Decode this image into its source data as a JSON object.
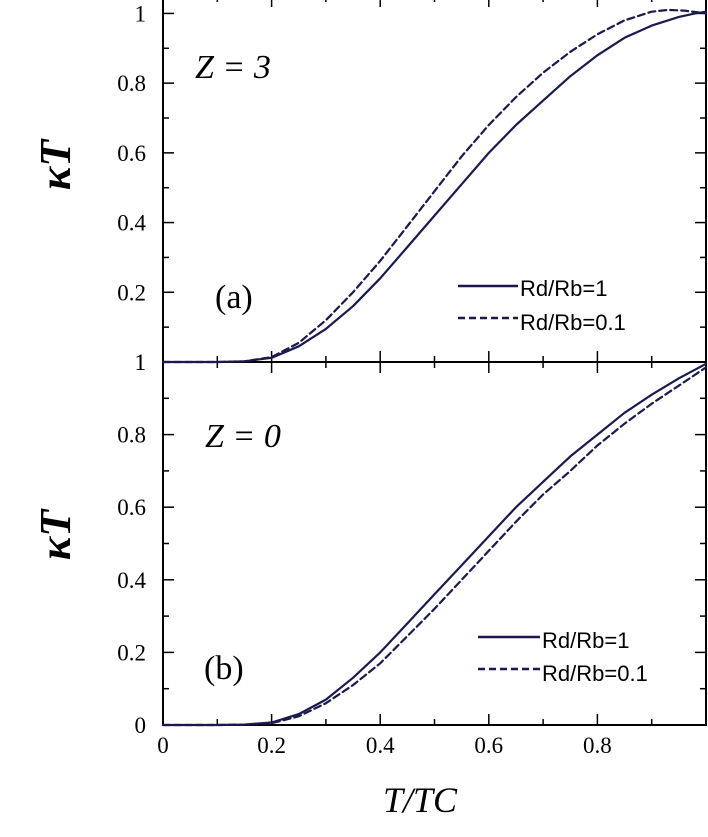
{
  "chart_data": [
    {
      "type": "line",
      "panel_label": "(a)",
      "annotation": "Z = 3",
      "ylabel": "κT",
      "xlabel": "",
      "xlim": [
        0,
        1
      ],
      "ylim": [
        0,
        1.05
      ],
      "yticks": [
        "1",
        "0.8",
        "0.6",
        "0.4",
        "0.2"
      ],
      "grid": false,
      "legend_position": "bottom-right",
      "series": [
        {
          "name": "Rd/Rb=1",
          "style": "solid",
          "x": [
            0.0,
            0.1,
            0.15,
            0.2,
            0.25,
            0.3,
            0.35,
            0.4,
            0.45,
            0.5,
            0.55,
            0.6,
            0.65,
            0.7,
            0.75,
            0.8,
            0.85,
            0.9,
            0.95,
            0.98,
            1.0
          ],
          "y": [
            0.0,
            0.0,
            0.002,
            0.012,
            0.045,
            0.095,
            0.16,
            0.24,
            0.33,
            0.42,
            0.51,
            0.6,
            0.68,
            0.75,
            0.82,
            0.88,
            0.93,
            0.965,
            0.99,
            1.0,
            1.005
          ]
        },
        {
          "name": "Rd/Rb=0.1",
          "style": "dashed",
          "x": [
            0.0,
            0.1,
            0.15,
            0.2,
            0.25,
            0.3,
            0.35,
            0.4,
            0.45,
            0.5,
            0.55,
            0.6,
            0.65,
            0.7,
            0.75,
            0.8,
            0.85,
            0.9,
            0.93,
            0.96,
            1.0
          ],
          "y": [
            0.0,
            0.0,
            0.002,
            0.014,
            0.055,
            0.12,
            0.2,
            0.29,
            0.39,
            0.49,
            0.59,
            0.68,
            0.76,
            0.83,
            0.89,
            0.94,
            0.98,
            1.005,
            1.01,
            1.008,
            1.0
          ]
        }
      ]
    },
    {
      "type": "line",
      "panel_label": "(b)",
      "annotation": "Z = 0",
      "ylabel": "κT",
      "xlabel": "T/TC",
      "xlim": [
        0,
        1
      ],
      "ylim": [
        0,
        1
      ],
      "yticks": [
        "1",
        "0.8",
        "0.6",
        "0.4",
        "0.2",
        "0"
      ],
      "xticks": [
        "0",
        "0.2",
        "0.4",
        "0.6",
        "0.8"
      ],
      "grid": false,
      "legend_position": "bottom-right",
      "series": [
        {
          "name": "Rd/Rb=1",
          "style": "solid",
          "x": [
            0.0,
            0.1,
            0.15,
            0.2,
            0.25,
            0.3,
            0.35,
            0.4,
            0.45,
            0.5,
            0.55,
            0.6,
            0.65,
            0.7,
            0.75,
            0.8,
            0.85,
            0.9,
            0.95,
            1.0
          ],
          "y": [
            0.0,
            0.0,
            0.001,
            0.007,
            0.03,
            0.07,
            0.13,
            0.2,
            0.28,
            0.36,
            0.44,
            0.52,
            0.6,
            0.67,
            0.74,
            0.8,
            0.86,
            0.91,
            0.955,
            0.995
          ]
        },
        {
          "name": "Rd/Rb=0.1",
          "style": "dashed",
          "x": [
            0.0,
            0.1,
            0.15,
            0.2,
            0.25,
            0.3,
            0.35,
            0.4,
            0.45,
            0.5,
            0.55,
            0.6,
            0.65,
            0.7,
            0.75,
            0.8,
            0.85,
            0.9,
            0.95,
            1.0
          ],
          "y": [
            0.0,
            0.0,
            0.001,
            0.005,
            0.024,
            0.06,
            0.11,
            0.17,
            0.245,
            0.32,
            0.4,
            0.48,
            0.56,
            0.635,
            0.7,
            0.77,
            0.83,
            0.885,
            0.935,
            0.985
          ]
        }
      ]
    }
  ]
}
